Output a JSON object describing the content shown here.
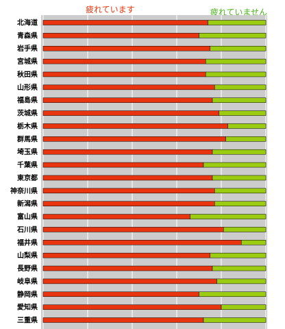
{
  "chart_data": {
    "type": "bar",
    "stacked": true,
    "orientation": "horizontal",
    "legend": {
      "tired": {
        "label": "疲れています",
        "color": "#e8350f"
      },
      "not_tired": {
        "label": "疲れていません",
        "color": "#9ccc12"
      }
    },
    "categories": [
      "北海道",
      "青森県",
      "岩手県",
      "宮城県",
      "秋田県",
      "山形県",
      "福島県",
      "茨城県",
      "栃木県",
      "群馬県",
      "埼玉県",
      "千葉県",
      "東京都",
      "神奈川県",
      "新潟県",
      "富山県",
      "石川県",
      "福井県",
      "山梨県",
      "長野県",
      "岐阜県",
      "静岡県",
      "愛知県",
      "三重県"
    ],
    "series": [
      {
        "name": "疲れています",
        "values": [
          74,
          70,
          75,
          73,
          73,
          77,
          76,
          79,
          83,
          82,
          76,
          72,
          76,
          77,
          77,
          66,
          81,
          89,
          75,
          76,
          78,
          70,
          80,
          72
        ]
      },
      {
        "name": "疲れていません",
        "values": [
          26,
          30,
          25,
          27,
          27,
          23,
          24,
          21,
          17,
          18,
          24,
          28,
          24,
          23,
          23,
          34,
          19,
          11,
          25,
          24,
          22,
          30,
          20,
          28
        ]
      }
    ],
    "xlim": [
      0,
      100
    ],
    "grid": true
  }
}
